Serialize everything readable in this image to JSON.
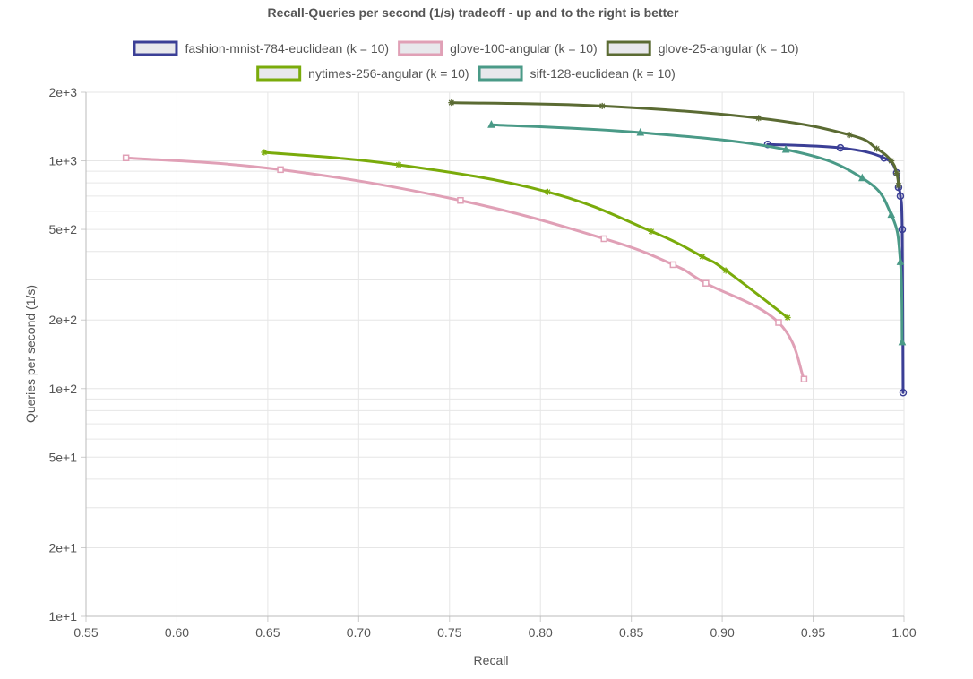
{
  "chart_data": {
    "type": "line",
    "title": "Recall-Queries per second (1/s) tradeoff - up and to the right is better",
    "xlabel": "Recall",
    "ylabel": "Queries per second (1/s)",
    "xlim": [
      0.55,
      1.0
    ],
    "ylim": [
      10,
      2000
    ],
    "yscale": "log",
    "grid": true,
    "legend_position": "top",
    "x_ticks": [
      "0.55",
      "0.60",
      "0.65",
      "0.70",
      "0.75",
      "0.80",
      "0.85",
      "0.90",
      "0.95",
      "1.00"
    ],
    "y_ticks": [
      {
        "value": 10,
        "label": "1e+1"
      },
      {
        "value": 20,
        "label": "2e+1"
      },
      {
        "value": 50,
        "label": "5e+1"
      },
      {
        "value": 100,
        "label": "1e+2"
      },
      {
        "value": 200,
        "label": "2e+2"
      },
      {
        "value": 500,
        "label": "5e+2"
      },
      {
        "value": 1000,
        "label": "1e+3"
      },
      {
        "value": 2000,
        "label": "2e+3"
      }
    ],
    "series": [
      {
        "name": "fashion-mnist-784-euclidean (k = 10)",
        "color": "#3b3f96",
        "marker": "circle",
        "x": [
          0.925,
          0.965,
          0.989,
          0.996,
          0.997,
          0.998,
          0.999,
          0.9995
        ],
        "y": [
          1180,
          1140,
          1030,
          885,
          765,
          700,
          500,
          96
        ]
      },
      {
        "name": "glove-100-angular (k = 10)",
        "color": "#e0a0b6",
        "marker": "square",
        "x": [
          0.572,
          0.657,
          0.756,
          0.835,
          0.873,
          0.891,
          0.931,
          0.945
        ],
        "y": [
          1030,
          915,
          670,
          455,
          350,
          290,
          195,
          110
        ]
      },
      {
        "name": "glove-25-angular (k = 10)",
        "color": "#5b6b33",
        "marker": "star",
        "x": [
          0.751,
          0.834,
          0.92,
          0.97,
          0.985,
          0.993,
          0.996,
          0.997
        ],
        "y": [
          1800,
          1740,
          1540,
          1300,
          1130,
          1000,
          880,
          780
        ]
      },
      {
        "name": "nytimes-256-angular (k = 10)",
        "color": "#7aab0b",
        "marker": "star",
        "x": [
          0.648,
          0.722,
          0.804,
          0.861,
          0.889,
          0.902,
          0.936
        ],
        "y": [
          1090,
          960,
          730,
          490,
          380,
          330,
          205
        ]
      },
      {
        "name": "sift-128-euclidean (k = 10)",
        "color": "#4a9a87",
        "marker": "triangle",
        "x": [
          0.773,
          0.855,
          0.935,
          0.977,
          0.993,
          0.998,
          0.999
        ],
        "y": [
          1440,
          1330,
          1120,
          840,
          580,
          360,
          160
        ]
      }
    ]
  }
}
